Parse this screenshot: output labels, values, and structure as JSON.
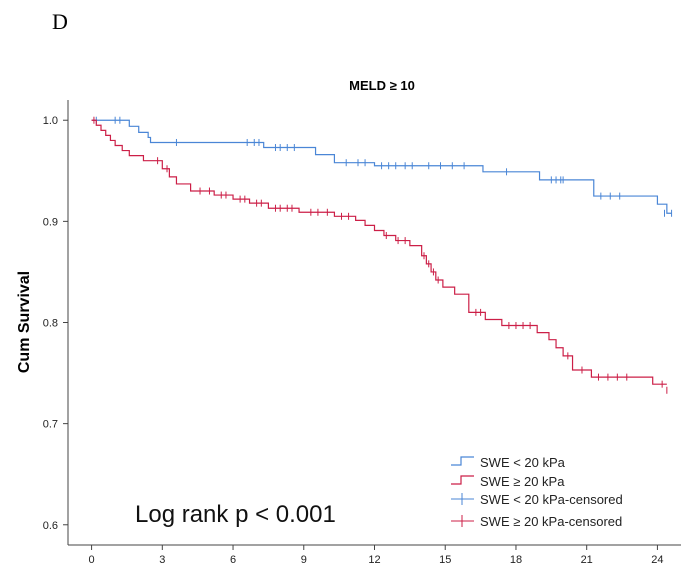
{
  "panel_label": "D",
  "chart_data": {
    "type": "line",
    "subtype": "kaplan-meier",
    "title": "MELD ≥ 10",
    "xlabel": "",
    "ylabel": "Cum Survival",
    "xlim": [
      -1,
      25
    ],
    "ylim": [
      0.58,
      1.02
    ],
    "x_ticks": [
      0,
      3,
      6,
      9,
      12,
      15,
      18,
      21,
      24
    ],
    "y_ticks": [
      0.6,
      0.7,
      0.8,
      0.9,
      1.0
    ],
    "y_tick_labels": [
      "0.6",
      "0.7",
      "0.8",
      "0.9",
      "1.0"
    ],
    "grid": false,
    "legend_position": "bottom-right",
    "legend": [
      "SWE < 20 kPa",
      "SWE ≥ 20 kPa",
      "SWE < 20 kPa-censored",
      "SWE ≥ 20 kPa-censored"
    ],
    "annotation": "Log rank p < 0.001",
    "series": [
      {
        "name": "SWE < 20 kPa",
        "color": "#4a86d6",
        "x": [
          0,
          1.6,
          2.0,
          2.4,
          2.5,
          7.3,
          9.5,
          10.3,
          12.0,
          16.6,
          19.0,
          21.3,
          24.0,
          24.4
        ],
        "y": [
          1.0,
          0.994,
          0.988,
          0.983,
          0.978,
          0.973,
          0.966,
          0.958,
          0.955,
          0.949,
          0.941,
          0.925,
          0.917,
          0.908
        ],
        "censored_x": [
          0.2,
          1.0,
          1.2,
          3.6,
          6.6,
          6.9,
          7.1,
          7.8,
          8.0,
          8.3,
          8.6,
          10.8,
          11.3,
          11.6,
          12.3,
          12.6,
          12.9,
          13.3,
          13.6,
          14.3,
          14.8,
          15.3,
          15.8,
          17.6,
          19.5,
          19.7,
          19.9,
          20.0,
          21.6,
          22.0,
          22.4,
          24.3,
          24.6
        ],
        "censored_y": [
          1.0,
          1.0,
          1.0,
          0.978,
          0.978,
          0.978,
          0.978,
          0.973,
          0.973,
          0.973,
          0.973,
          0.958,
          0.958,
          0.958,
          0.955,
          0.955,
          0.955,
          0.955,
          0.955,
          0.955,
          0.955,
          0.955,
          0.955,
          0.949,
          0.941,
          0.941,
          0.941,
          0.941,
          0.925,
          0.925,
          0.925,
          0.908,
          0.908
        ]
      },
      {
        "name": "SWE ≥ 20 kPa",
        "color": "#cc1f47",
        "x": [
          0,
          0.2,
          0.4,
          0.6,
          0.8,
          1.0,
          1.3,
          1.6,
          2.2,
          3.0,
          3.3,
          3.6,
          4.2,
          5.2,
          6.0,
          6.7,
          7.5,
          8.8,
          10.3,
          11.2,
          11.6,
          12.0,
          12.4,
          12.9,
          13.5,
          14.0,
          14.2,
          14.4,
          14.6,
          14.9,
          15.4,
          16.0,
          16.7,
          17.4,
          18.9,
          19.4,
          19.7,
          20.0,
          20.4,
          21.2,
          23.8
        ],
        "y": [
          1.0,
          0.995,
          0.99,
          0.985,
          0.98,
          0.975,
          0.97,
          0.965,
          0.96,
          0.952,
          0.944,
          0.937,
          0.93,
          0.926,
          0.922,
          0.918,
          0.913,
          0.909,
          0.905,
          0.901,
          0.896,
          0.891,
          0.886,
          0.881,
          0.876,
          0.866,
          0.858,
          0.85,
          0.842,
          0.835,
          0.828,
          0.81,
          0.803,
          0.797,
          0.79,
          0.783,
          0.775,
          0.767,
          0.753,
          0.746,
          0.739
        ],
        "censored_x": [
          0.1,
          2.8,
          3.2,
          4.6,
          5.0,
          5.5,
          5.7,
          6.3,
          6.5,
          7.0,
          7.2,
          7.8,
          8.0,
          8.3,
          8.5,
          9.3,
          9.6,
          10.0,
          10.6,
          10.9,
          12.5,
          13.0,
          13.3,
          14.1,
          14.3,
          14.5,
          14.7,
          16.3,
          16.5,
          17.7,
          18.0,
          18.3,
          18.6,
          20.2,
          20.8,
          21.5,
          21.9,
          22.3,
          22.7,
          24.2,
          24.4
        ],
        "censored_y": [
          1.0,
          0.96,
          0.952,
          0.93,
          0.93,
          0.926,
          0.926,
          0.922,
          0.922,
          0.918,
          0.918,
          0.913,
          0.913,
          0.913,
          0.913,
          0.909,
          0.909,
          0.909,
          0.905,
          0.905,
          0.886,
          0.881,
          0.881,
          0.866,
          0.858,
          0.85,
          0.842,
          0.81,
          0.81,
          0.797,
          0.797,
          0.797,
          0.797,
          0.767,
          0.753,
          0.746,
          0.746,
          0.746,
          0.746,
          0.739,
          0.733
        ]
      }
    ]
  }
}
